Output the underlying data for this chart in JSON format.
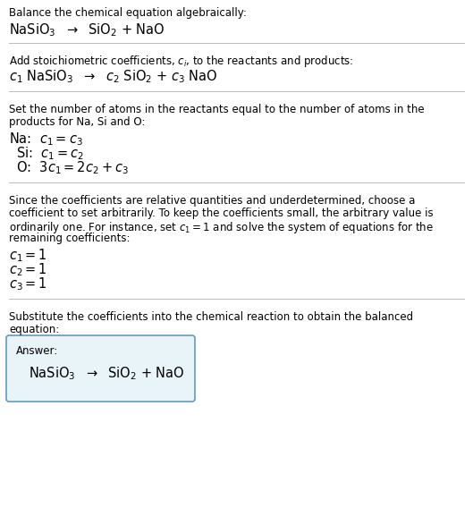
{
  "bg_color": "#ffffff",
  "text_color": "#000000",
  "line_color": "#bbbbbb",
  "answer_box_color": "#e8f4f8",
  "answer_box_border": "#6699bb",
  "fs_small": 8.5,
  "fs_eq": 10.5,
  "fs_answer": 11,
  "sections": [
    {
      "type": "text_then_eq",
      "text": "Balance the chemical equation algebraically:",
      "eq": "NaSiO$_3$  $\\rightarrow$  SiO$_2$ + NaO"
    },
    {
      "type": "text_then_eq",
      "text": "Add stoichiometric coefficients, $c_i$, to the reactants and products:",
      "eq": "$c_1$ NaSiO$_3$  $\\rightarrow$  $c_2$ SiO$_2$ + $c_3$ NaO"
    },
    {
      "type": "text_then_eqs",
      "lines": [
        "Set the number of atoms in the reactants equal to the number of atoms in the",
        "products for Na, Si and O:"
      ],
      "eqs": [
        "Na:  $c_1 = c_3$",
        "  Si:  $c_1 = c_2$",
        "  O:  $3 c_1 = 2 c_2 + c_3$"
      ]
    },
    {
      "type": "text_then_eqs",
      "lines": [
        "Since the coefficients are relative quantities and underdetermined, choose a",
        "coefficient to set arbitrarily. To keep the coefficients small, the arbitrary value is",
        "ordinarily one. For instance, set $c_1 = 1$ and solve the system of equations for the",
        "remaining coefficients:"
      ],
      "eqs": [
        "$c_1 = 1$",
        "$c_2 = 1$",
        "$c_3 = 1$"
      ]
    },
    {
      "type": "answer",
      "lines": [
        "Substitute the coefficients into the chemical reaction to obtain the balanced",
        "equation:"
      ],
      "answer_label": "Answer:",
      "answer_eq": "NaSiO$_3$  $\\rightarrow$  SiO$_2$ + NaO"
    }
  ]
}
